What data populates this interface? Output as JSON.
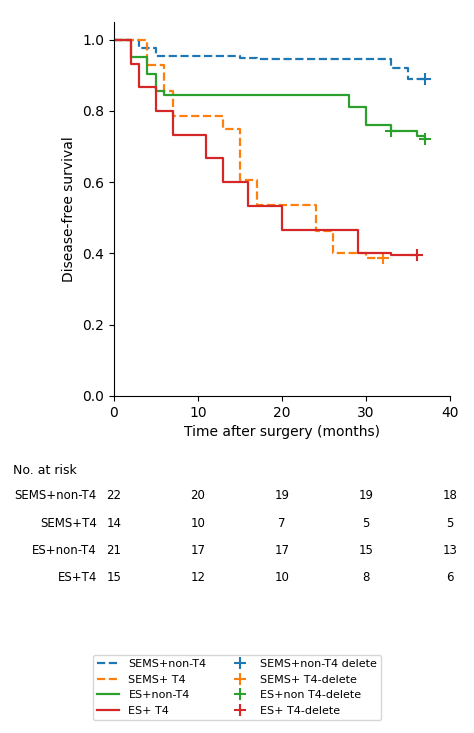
{
  "chart_data": {
    "type": "kaplan_meier",
    "xlabel": "Time after surgery (months)",
    "ylabel": "Disease-free survival",
    "xlim": [
      0,
      40
    ],
    "ylim": [
      0.0,
      1.05
    ],
    "xticks": [
      0,
      10,
      20,
      30,
      40
    ],
    "yticks": [
      0.0,
      0.2,
      0.4,
      0.6,
      0.8,
      1.0
    ],
    "risk_header": "No. at risk",
    "risk_times": [
      0,
      10,
      20,
      30,
      40
    ],
    "series": [
      {
        "name": "SEMS+non-T4",
        "risk_label": "SEMS+non-T4",
        "censor_label": "SEMS+non-T4 delete",
        "line_style": "dashed",
        "x": [
          0,
          3,
          5,
          15,
          17,
          33,
          35,
          37
        ],
        "values": [
          1.0,
          0.977,
          0.954,
          0.95,
          0.945,
          0.92,
          0.89,
          0.89
        ],
        "censor_x": [
          37
        ],
        "censor_values": [
          0.89
        ],
        "at_risk": [
          22,
          20,
          19,
          19,
          18
        ]
      },
      {
        "name": "SEMS+ T4",
        "risk_label": "SEMS+T4",
        "censor_label": "SEMS+ T4-delete",
        "line_style": "dashed",
        "x": [
          0,
          4,
          6,
          7,
          13,
          15,
          17,
          24,
          26,
          30,
          32
        ],
        "values": [
          1.0,
          0.929,
          0.857,
          0.786,
          0.75,
          0.607,
          0.536,
          0.464,
          0.4,
          0.386,
          0.386
        ],
        "censor_x": [
          32
        ],
        "censor_values": [
          0.386
        ],
        "at_risk": [
          14,
          10,
          7,
          5,
          5
        ]
      },
      {
        "name": "ES+non-T4",
        "risk_label": "ES+non-T4",
        "censor_label": "ES+non T4-delete",
        "line_style": "solid",
        "x": [
          0,
          2,
          4,
          5,
          6,
          28,
          30,
          33,
          36,
          37
        ],
        "values": [
          1.0,
          0.952,
          0.905,
          0.857,
          0.845,
          0.81,
          0.762,
          0.745,
          0.73,
          0.72
        ],
        "censor_x": [
          33,
          37
        ],
        "censor_values": [
          0.745,
          0.72
        ],
        "at_risk": [
          21,
          17,
          17,
          15,
          13
        ]
      },
      {
        "name": "ES+ T4",
        "risk_label": "ES+T4",
        "censor_label": "ES+ T4-delete",
        "line_style": "solid",
        "x": [
          0,
          2,
          3,
          5,
          7,
          11,
          13,
          16,
          20,
          29,
          33,
          36
        ],
        "values": [
          1.0,
          0.933,
          0.867,
          0.8,
          0.733,
          0.667,
          0.6,
          0.533,
          0.467,
          0.4,
          0.395,
          0.395
        ],
        "censor_x": [
          36
        ],
        "censor_values": [
          0.395
        ],
        "at_risk": [
          15,
          12,
          10,
          8,
          6
        ]
      }
    ]
  }
}
